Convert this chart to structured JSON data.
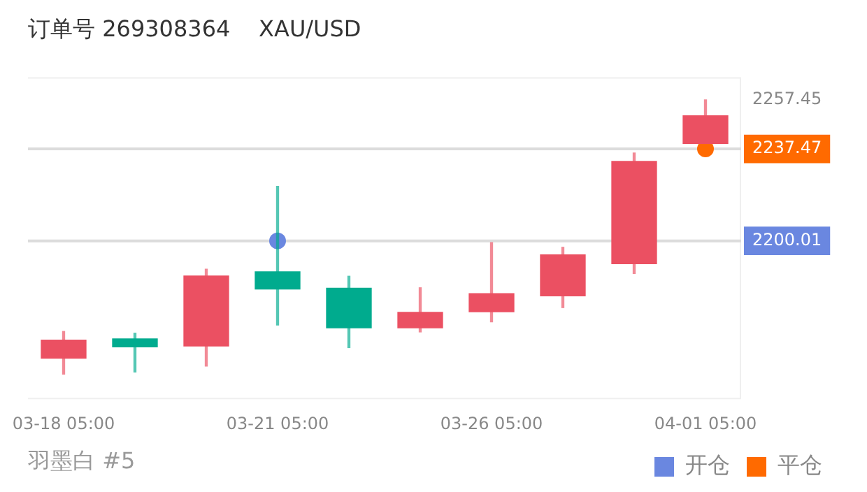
{
  "chart_data": {
    "type": "candlestick",
    "title": "订单号 269308364    XAU/USD",
    "categories": [
      "03-18 05:00",
      null,
      null,
      "03-21 05:00",
      null,
      null,
      "03-26 05:00",
      null,
      null,
      "04-01 05:00"
    ],
    "ohlc": [
      [
        2152.2,
        2163.1,
        2145.7,
        2159.6
      ],
      [
        2160.1,
        2162.4,
        2146.6,
        2156.8
      ],
      [
        2157.2,
        2188.5,
        2149.0,
        2185.7
      ],
      [
        2187.4,
        2222.2,
        2165.7,
        2180.4
      ],
      [
        2180.7,
        2185.6,
        2156.5,
        2164.6
      ],
      [
        2164.6,
        2180.9,
        2162.9,
        2170.9
      ],
      [
        2171.1,
        2199.3,
        2167.0,
        2178.5
      ],
      [
        2177.6,
        2197.4,
        2172.8,
        2194.3
      ],
      [
        2190.7,
        2235.8,
        2186.7,
        2232.4
      ],
      [
        2239.7,
        2257.45,
        2239.7,
        2251.0
      ]
    ],
    "colors": [
      "#eb5062",
      "#00ab8e",
      "#eb5062",
      "#00ab8e",
      "#00ab8e",
      "#eb5062",
      "#eb5062",
      "#eb5062",
      "#eb5062",
      "#eb5062"
    ],
    "series": [
      {
        "name": "开仓",
        "type": "scatter",
        "color": "#6a87e0",
        "values": [
          null,
          null,
          null,
          2200.01,
          null,
          null,
          null,
          null,
          null,
          null
        ]
      },
      {
        "name": "平仓",
        "type": "scatter",
        "color": "#ff6a00",
        "values": [
          null,
          null,
          null,
          null,
          null,
          null,
          null,
          null,
          null,
          2237.47
        ]
      }
    ],
    "ylim": [
      2135.5,
      2266.7
    ],
    "yticks": [
      2200.01,
      2237.47,
      2257.45
    ],
    "ref_lines": [
      {
        "axis": "y",
        "value": 2237.47,
        "color": "#dcdcdc"
      },
      {
        "axis": "y",
        "value": 2200.01,
        "color": "#dcdcdc"
      }
    ],
    "annotations": [
      "羽墨白 #5"
    ],
    "legend": "bottom right",
    "marker": "circle"
  }
}
